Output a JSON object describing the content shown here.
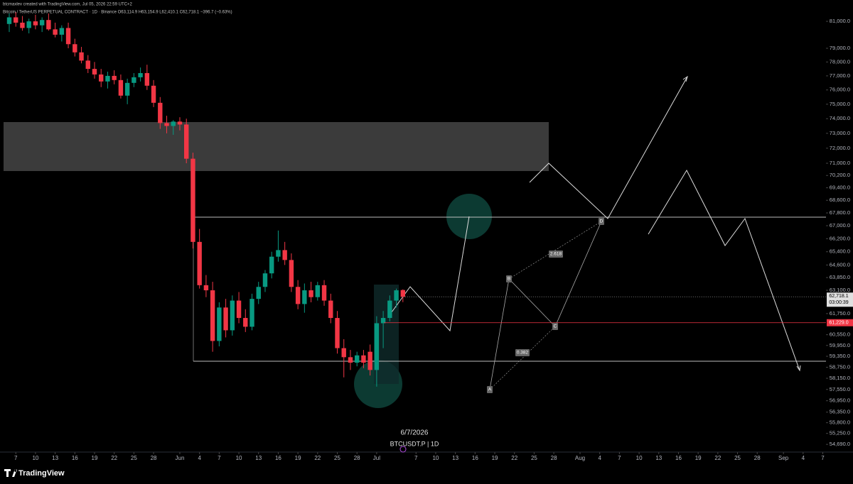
{
  "header": {
    "creator": "btcmaxlev created with TradingView.com, Jul 05, 2026 22:59 UTC+2",
    "symbol_line": "Bitcoin / TetherUS PERPETUAL CONTRACT · 1D · Binance  O63,114.9 H63,154.9 L62,410.1 C62,718.1 −396.7 (−0.63%)"
  },
  "chart_data": {
    "type": "candlestick",
    "log": true,
    "up_color": "#089981",
    "down_color": "#f23645",
    "x": [
      "2026-05-06",
      "2026-05-07",
      "2026-05-08",
      "2026-05-09",
      "2026-05-10",
      "2026-05-11",
      "2026-05-12",
      "2026-05-13",
      "2026-05-14",
      "2026-05-15",
      "2026-05-16",
      "2026-05-17",
      "2026-05-18",
      "2026-05-19",
      "2026-05-20",
      "2026-05-21",
      "2026-05-22",
      "2026-05-23",
      "2026-05-24",
      "2026-05-25",
      "2026-05-26",
      "2026-05-27",
      "2026-05-28",
      "2026-05-29",
      "2026-05-30",
      "2026-05-31",
      "2026-06-01",
      "2026-06-02",
      "2026-06-03",
      "2026-06-04",
      "2026-06-05",
      "2026-06-06",
      "2026-06-07",
      "2026-06-08",
      "2026-06-09",
      "2026-06-10",
      "2026-06-11",
      "2026-06-12",
      "2026-06-13",
      "2026-06-14",
      "2026-06-15",
      "2026-06-16",
      "2026-06-17",
      "2026-06-18",
      "2026-06-19",
      "2026-06-20",
      "2026-06-21",
      "2026-06-22",
      "2026-06-23",
      "2026-06-24",
      "2026-06-25",
      "2026-06-26",
      "2026-06-27",
      "2026-06-28",
      "2026-06-29",
      "2026-06-30",
      "2026-07-01",
      "2026-07-02",
      "2026-07-03",
      "2026-07-04",
      "2026-07-05"
    ],
    "open": [
      80800,
      81300,
      80900,
      80500,
      81000,
      80700,
      81100,
      80400,
      80000,
      80500,
      79300,
      78700,
      78100,
      77500,
      77100,
      76600,
      77000,
      76700,
      75600,
      76500,
      76900,
      77200,
      76300,
      75100,
      73700,
      73500,
      73800,
      73600,
      71300,
      66000,
      63400,
      63100,
      60200,
      62100,
      60800,
      62500,
      61500,
      61000,
      62600,
      63300,
      64100,
      65100,
      65500,
      64900,
      63300,
      62300,
      63100,
      62700,
      63400,
      62500,
      61500,
      59800,
      59300,
      59000,
      59400,
      59600,
      58600,
      61200,
      61500,
      62500,
      63114.9
    ],
    "high": [
      81600,
      81700,
      81400,
      81200,
      81500,
      81300,
      81600,
      80900,
      80700,
      80900,
      79700,
      79100,
      78500,
      78000,
      77500,
      77300,
      77400,
      77100,
      76800,
      77200,
      77600,
      77800,
      76700,
      75500,
      74200,
      73900,
      74100,
      74000,
      71700,
      66800,
      64000,
      63600,
      62400,
      62600,
      62800,
      63000,
      62000,
      62900,
      63600,
      64300,
      65400,
      66700,
      66000,
      65300,
      63700,
      63500,
      63600,
      63600,
      63700,
      62900,
      61900,
      60300,
      59700,
      59600,
      59700,
      60000,
      61600,
      61900,
      62800,
      63200,
      63154.9
    ],
    "low": [
      80200,
      80600,
      80300,
      80100,
      80400,
      80200,
      80300,
      79800,
      79500,
      79000,
      78400,
      77900,
      77200,
      76800,
      76200,
      76100,
      76400,
      75400,
      75000,
      76200,
      76600,
      76000,
      74800,
      73300,
      73000,
      72900,
      73200,
      71000,
      65600,
      63200,
      62700,
      59600,
      59900,
      60400,
      60500,
      61200,
      60700,
      60800,
      62300,
      63000,
      63800,
      64800,
      64600,
      63000,
      62000,
      61800,
      62400,
      62500,
      62200,
      61200,
      59500,
      58200,
      58600,
      58800,
      58700,
      58300,
      57700,
      59800,
      61300,
      62100,
      62410.1
    ],
    "close": [
      81300,
      80900,
      80500,
      81000,
      80700,
      81100,
      80400,
      80000,
      80500,
      79300,
      78700,
      78100,
      77500,
      77100,
      76600,
      77000,
      76700,
      75600,
      76500,
      76900,
      77200,
      76300,
      75100,
      73700,
      73500,
      73800,
      73600,
      71300,
      66000,
      63400,
      63100,
      60200,
      62100,
      60800,
      62500,
      61500,
      61000,
      62600,
      63300,
      64100,
      65100,
      65500,
      64900,
      63300,
      62300,
      63100,
      62700,
      63400,
      62500,
      61500,
      59800,
      59300,
      59000,
      59400,
      59000,
      58600,
      61200,
      61500,
      62500,
      63100,
      62718.1
    ],
    "ylim": [
      54300,
      82620
    ],
    "yticks": [
      {
        "value": 81000,
        "label": "81,000.0"
      },
      {
        "value": 79000,
        "label": "79,000.0"
      },
      {
        "value": 78000,
        "label": "78,000.0"
      },
      {
        "value": 77000,
        "label": "77,000.0"
      },
      {
        "value": 76000,
        "label": "76,000.0"
      },
      {
        "value": 75000,
        "label": "75,000.0"
      },
      {
        "value": 74000,
        "label": "74,000.0"
      },
      {
        "value": 73000,
        "label": "73,000.0"
      },
      {
        "value": 72000,
        "label": "72,000.0"
      },
      {
        "value": 71000,
        "label": "71,000.0"
      },
      {
        "value": 70200,
        "label": "70,200.0"
      },
      {
        "value": 69400,
        "label": "69,400.0"
      },
      {
        "value": 68600,
        "label": "68,600.0"
      },
      {
        "value": 67800,
        "label": "67,800.0"
      },
      {
        "value": 67000,
        "label": "67,000.0"
      },
      {
        "value": 66200,
        "label": "66,200.0"
      },
      {
        "value": 65400,
        "label": "65,400.0"
      },
      {
        "value": 64600,
        "label": "64,600.0"
      },
      {
        "value": 63850,
        "label": "63,850.0"
      },
      {
        "value": 63100,
        "label": "63,100.0"
      },
      {
        "value": 61750,
        "label": "61,750.0"
      },
      {
        "value": 60550,
        "label": "60,550.0"
      },
      {
        "value": 59950,
        "label": "59,950.0"
      },
      {
        "value": 59350,
        "label": "59,350.0"
      },
      {
        "value": 58750,
        "label": "58,750.0"
      },
      {
        "value": 58150,
        "label": "58,150.0"
      },
      {
        "value": 57550,
        "label": "57,550.0"
      },
      {
        "value": 56950,
        "label": "56,950.0"
      },
      {
        "value": 56350,
        "label": "56,350.0"
      },
      {
        "value": 55800,
        "label": "55,800.0"
      },
      {
        "value": 55250,
        "label": "55,250.0"
      },
      {
        "value": 54690,
        "label": "54,690.0"
      }
    ],
    "xticks": [
      {
        "value": "2026-05-07",
        "label": "7"
      },
      {
        "value": "2026-05-10",
        "label": "10"
      },
      {
        "value": "2026-05-13",
        "label": "13"
      },
      {
        "value": "2026-05-16",
        "label": "16"
      },
      {
        "value": "2026-05-19",
        "label": "19"
      },
      {
        "value": "2026-05-22",
        "label": "22"
      },
      {
        "value": "2026-05-25",
        "label": "25"
      },
      {
        "value": "2026-05-28",
        "label": "28"
      },
      {
        "value": "2026-06-01",
        "label": "Jun"
      },
      {
        "value": "2026-06-04",
        "label": "4"
      },
      {
        "value": "2026-06-07",
        "label": "7"
      },
      {
        "value": "2026-06-10",
        "label": "10"
      },
      {
        "value": "2026-06-13",
        "label": "13"
      },
      {
        "value": "2026-06-16",
        "label": "16"
      },
      {
        "value": "2026-06-19",
        "label": "19"
      },
      {
        "value": "2026-06-22",
        "label": "22"
      },
      {
        "value": "2026-06-25",
        "label": "25"
      },
      {
        "value": "2026-06-28",
        "label": "28"
      },
      {
        "value": "2026-07-01",
        "label": "Jul"
      },
      {
        "value": "2026-07-07",
        "label": "7"
      },
      {
        "value": "2026-07-10",
        "label": "10"
      },
      {
        "value": "2026-07-13",
        "label": "13"
      },
      {
        "value": "2026-07-16",
        "label": "16"
      },
      {
        "value": "2026-07-19",
        "label": "19"
      },
      {
        "value": "2026-07-22",
        "label": "22"
      },
      {
        "value": "2026-07-25",
        "label": "25"
      },
      {
        "value": "2026-07-28",
        "label": "28"
      },
      {
        "value": "2026-08-01",
        "label": "Aug"
      },
      {
        "value": "2026-08-04",
        "label": "4"
      },
      {
        "value": "2026-08-07",
        "label": "7"
      },
      {
        "value": "2026-08-10",
        "label": "10"
      },
      {
        "value": "2026-08-13",
        "label": "13"
      },
      {
        "value": "2026-08-16",
        "label": "16"
      },
      {
        "value": "2026-08-19",
        "label": "19"
      },
      {
        "value": "2026-08-22",
        "label": "22"
      },
      {
        "value": "2026-08-25",
        "label": "25"
      },
      {
        "value": "2026-08-28",
        "label": "28"
      },
      {
        "value": "2026-09-01",
        "label": "Sep"
      },
      {
        "value": "2026-09-04",
        "label": "4"
      },
      {
        "value": "2026-09-07",
        "label": "7"
      }
    ],
    "last_price": {
      "value": 62718.1,
      "label": "62,718.1"
    },
    "countdown": "03:00:39",
    "level": {
      "value": 61229,
      "label": "61,229.0"
    },
    "level_color": "#f23645",
    "points": [
      "A",
      "B",
      "C",
      "D"
    ],
    "ratios": [
      "2.618",
      "0.382"
    ],
    "date_label": "6/7/2026",
    "symbol_label": "BTCUSDT.P | 1D"
  },
  "footer": {
    "brand": "TradingView"
  }
}
